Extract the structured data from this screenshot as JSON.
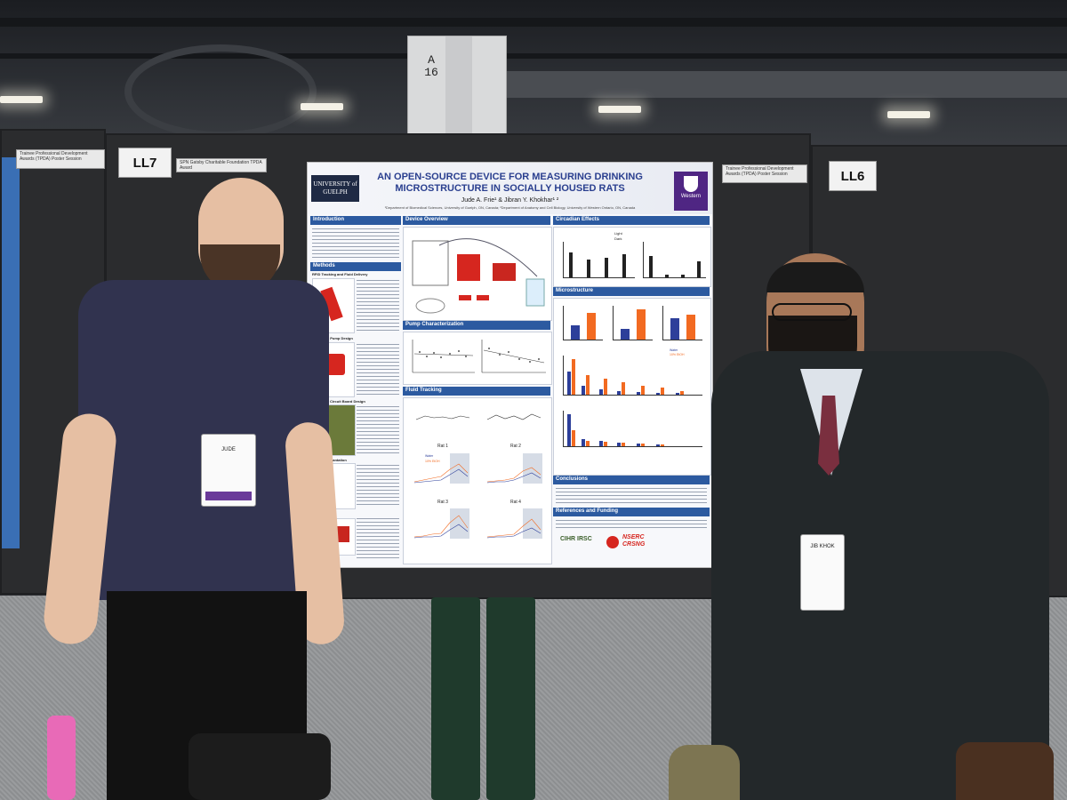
{
  "scene": {
    "column_sign": "A\n16",
    "board_tags": {
      "left": "LL7",
      "right": "LL6"
    },
    "award_strips": {
      "left_outer": "Trainee Professional Development Awards (TPDA) Poster Session",
      "left_main": "SPN Gatsby Charitable Foundation TPDA Award",
      "right_main": "Trainee Professional Development Awards (TPDA) Poster Session"
    }
  },
  "poster": {
    "title": "AN OPEN-SOURCE DEVICE FOR MEASURING DRINKING MICROSTRUCTURE IN SOCIALLY HOUSED RATS",
    "authors": "Jude A. Frie¹ & Jibran Y. Khokhar¹ ²",
    "affiliations": "¹Department of Biomedical Sciences, University of Guelph, ON, Canada; ²Department of Anatomy and Cell Biology, University of Western Ontario, ON, Canada",
    "logo_left": "UNIVERSITY of GUELPH",
    "logo_right": "Western",
    "sections": {
      "introduction": "Introduction",
      "methods": "Methods",
      "device_overview": "Device Overview",
      "pump_characterization": "Pump Characterization",
      "fluid_tracking": "Fluid Tracking",
      "circadian_effects": "Circadian Effects",
      "microstructure": "Microstructure",
      "conclusions": "Conclusions",
      "references": "References and Funding"
    },
    "methods_subsections": [
      "RFID Tracking and Fluid Delivery",
      "Peristaltic Pump Design",
      "Circuit Board Design",
      "Implantation"
    ],
    "legend": {
      "light": "Light",
      "dark": "Dark",
      "water": "Water",
      "etoh": "10% EtOH"
    },
    "rat_labels": [
      "Rat 1",
      "Rat 2",
      "Rat 3",
      "Rat 4"
    ],
    "funding": {
      "cihr": "CIHR IRSC",
      "nserc": "NSERC CRSNG"
    }
  },
  "badges": {
    "left": "JUDE",
    "right": "JIB KHOK"
  },
  "colors": {
    "poster_blue": "#2c5aa0",
    "orange": "#f26a21",
    "navy": "#2d3f9a",
    "western_purple": "#4f2683"
  }
}
